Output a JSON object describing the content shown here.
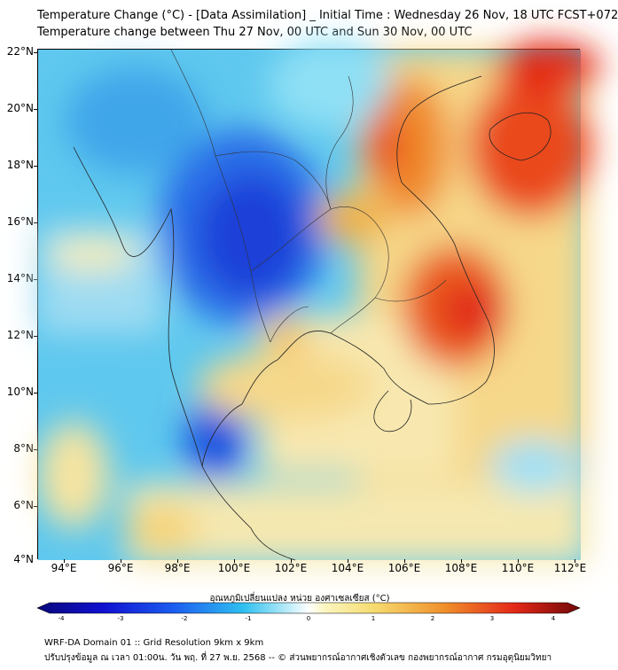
{
  "title": {
    "line1": "Temperature Change (°C) - [Data Assimilation] _ Initial Time : Wednesday 26 Nov, 18 UTC FCST+072",
    "line2": "Temperature change between Thu 27 Nov, 00 UTC and Sun 30 Nov, 00 UTC"
  },
  "axes": {
    "lat_labels": [
      "22°N",
      "20°N",
      "18°N",
      "16°N",
      "14°N",
      "12°N",
      "10°N",
      "8°N",
      "6°N",
      "4°N"
    ],
    "lon_labels": [
      "94°E",
      "96°E",
      "98°E",
      "100°E",
      "102°E",
      "104°E",
      "106°E",
      "108°E",
      "110°E",
      "112°E"
    ]
  },
  "colorbar": {
    "label": "อุณหภูมิเปลี่ยนแปลง หน่วย องศาเซลเซียส (°C)",
    "ticks": [
      "-4",
      "-3",
      "-2",
      "-1",
      "0",
      "1",
      "2",
      "3",
      "4"
    ],
    "min": -4,
    "max": 4
  },
  "footer": {
    "line1": "WRF-DA Domain 01 :: Grid Resolution 9km x 9km",
    "line2": "ปรับปรุงข้อมูล ณ เวลา 01:00น. วัน พฤ. ที่ 27 พ.ย. 2568 -- © ส่วนพยากรณ์อากาศเชิงตัวเลข กองพยากรณ์อากาศ กรมอุตุนิยมวิทยา"
  }
}
